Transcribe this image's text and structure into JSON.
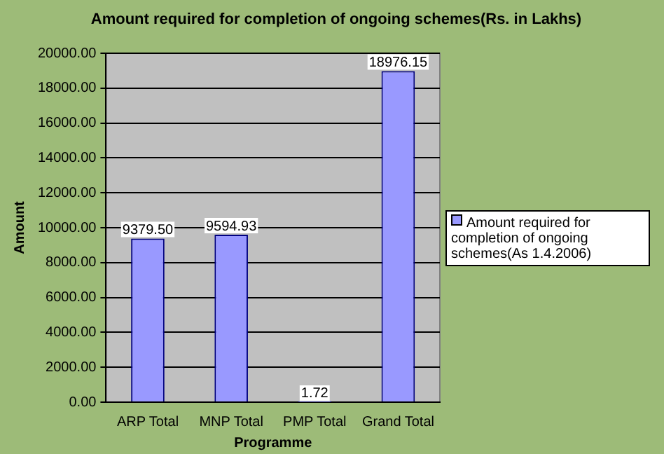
{
  "chart_data": {
    "type": "bar",
    "title": "Amount required for completion of ongoing schemes(Rs. in Lakhs)",
    "xlabel": "Programme",
    "ylabel": "Amount",
    "categories": [
      "ARP Total",
      "MNP Total",
      "PMP Total",
      "Grand Total"
    ],
    "series": [
      {
        "name": "Amount required for completion of ongoing schemes(As 1.4.2006)",
        "color": "#9999ff",
        "values": [
          9379.5,
          9594.93,
          1.72,
          18976.15
        ],
        "value_labels": [
          "9379.50",
          "9594.93",
          "1.72",
          "18976.15"
        ]
      }
    ],
    "ylim": [
      0,
      20000
    ],
    "yticks": [
      {
        "value": 0,
        "label": "0.00"
      },
      {
        "value": 2000,
        "label": "2000.00"
      },
      {
        "value": 4000,
        "label": "4000.00"
      },
      {
        "value": 6000,
        "label": "6000.00"
      },
      {
        "value": 8000,
        "label": "8000.00"
      },
      {
        "value": 10000,
        "label": "10000.00"
      },
      {
        "value": 12000,
        "label": "12000.00"
      },
      {
        "value": 14000,
        "label": "14000.00"
      },
      {
        "value": 16000,
        "label": "16000.00"
      },
      {
        "value": 18000,
        "label": "18000.00"
      },
      {
        "value": 20000,
        "label": "20000.00"
      }
    ],
    "grid": "y",
    "legend": "right"
  }
}
